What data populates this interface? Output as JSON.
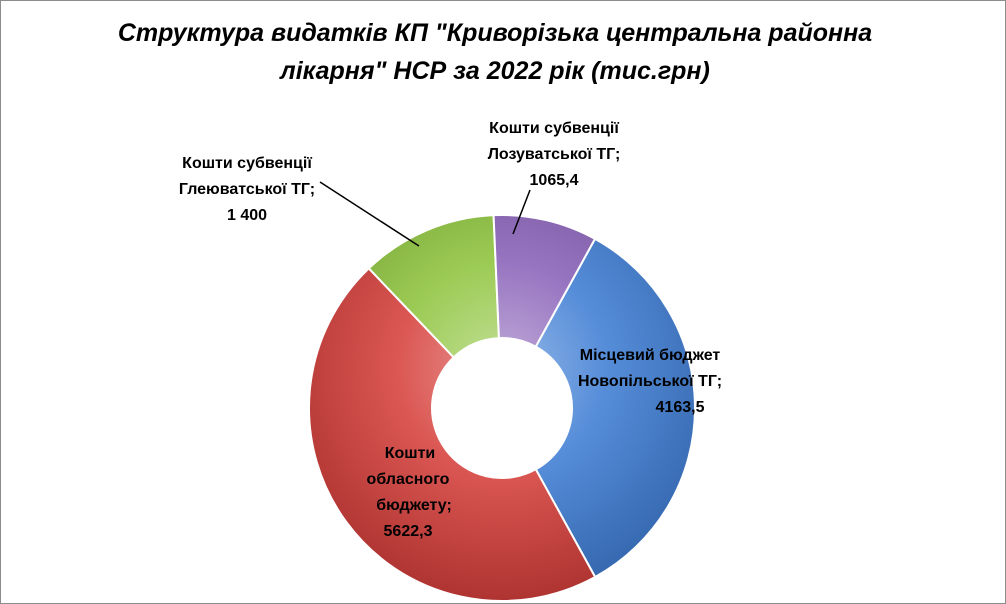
{
  "chart_data": {
    "type": "pie",
    "title": "Структура видатків КП \"Криворізька центральна районна лікарня\" НСР за 2022 рік (тис.грн)",
    "title_lines": [
      "Структура видатків КП \"Криворізька центральна районна",
      "лікарня\" НСР за 2022 рік (тис.грн)"
    ],
    "style": "doughnut-3d",
    "slices": [
      {
        "label": "Місцевий бюджет Новопільської ТГ;",
        "label_lines": [
          "Місцевий бюджет",
          "Новопільської ТГ;"
        ],
        "value": 4163.5,
        "value_text": "4163,5",
        "color": "#3f7ed4"
      },
      {
        "label": "Кошти обласного бюджету;",
        "label_lines": [
          "Кошти",
          "обласного",
          "бюджету;"
        ],
        "value": 5622.3,
        "value_text": "5622,3",
        "color": "#d6403c"
      },
      {
        "label": "Кошти субвенції Глеюватської ТГ;",
        "label_lines": [
          "Кошти субвенції",
          "Глеюватської ТГ;"
        ],
        "value": 1400,
        "value_text": "1 400",
        "color": "#8fc43e"
      },
      {
        "label": "Кошти субвенції Лозуватської ТГ;",
        "label_lines": [
          "Кошти субвенції",
          "Лозуватської ТГ;"
        ],
        "value": 1065.4,
        "value_text": "1065,4",
        "color": "#8a62b8"
      }
    ]
  }
}
